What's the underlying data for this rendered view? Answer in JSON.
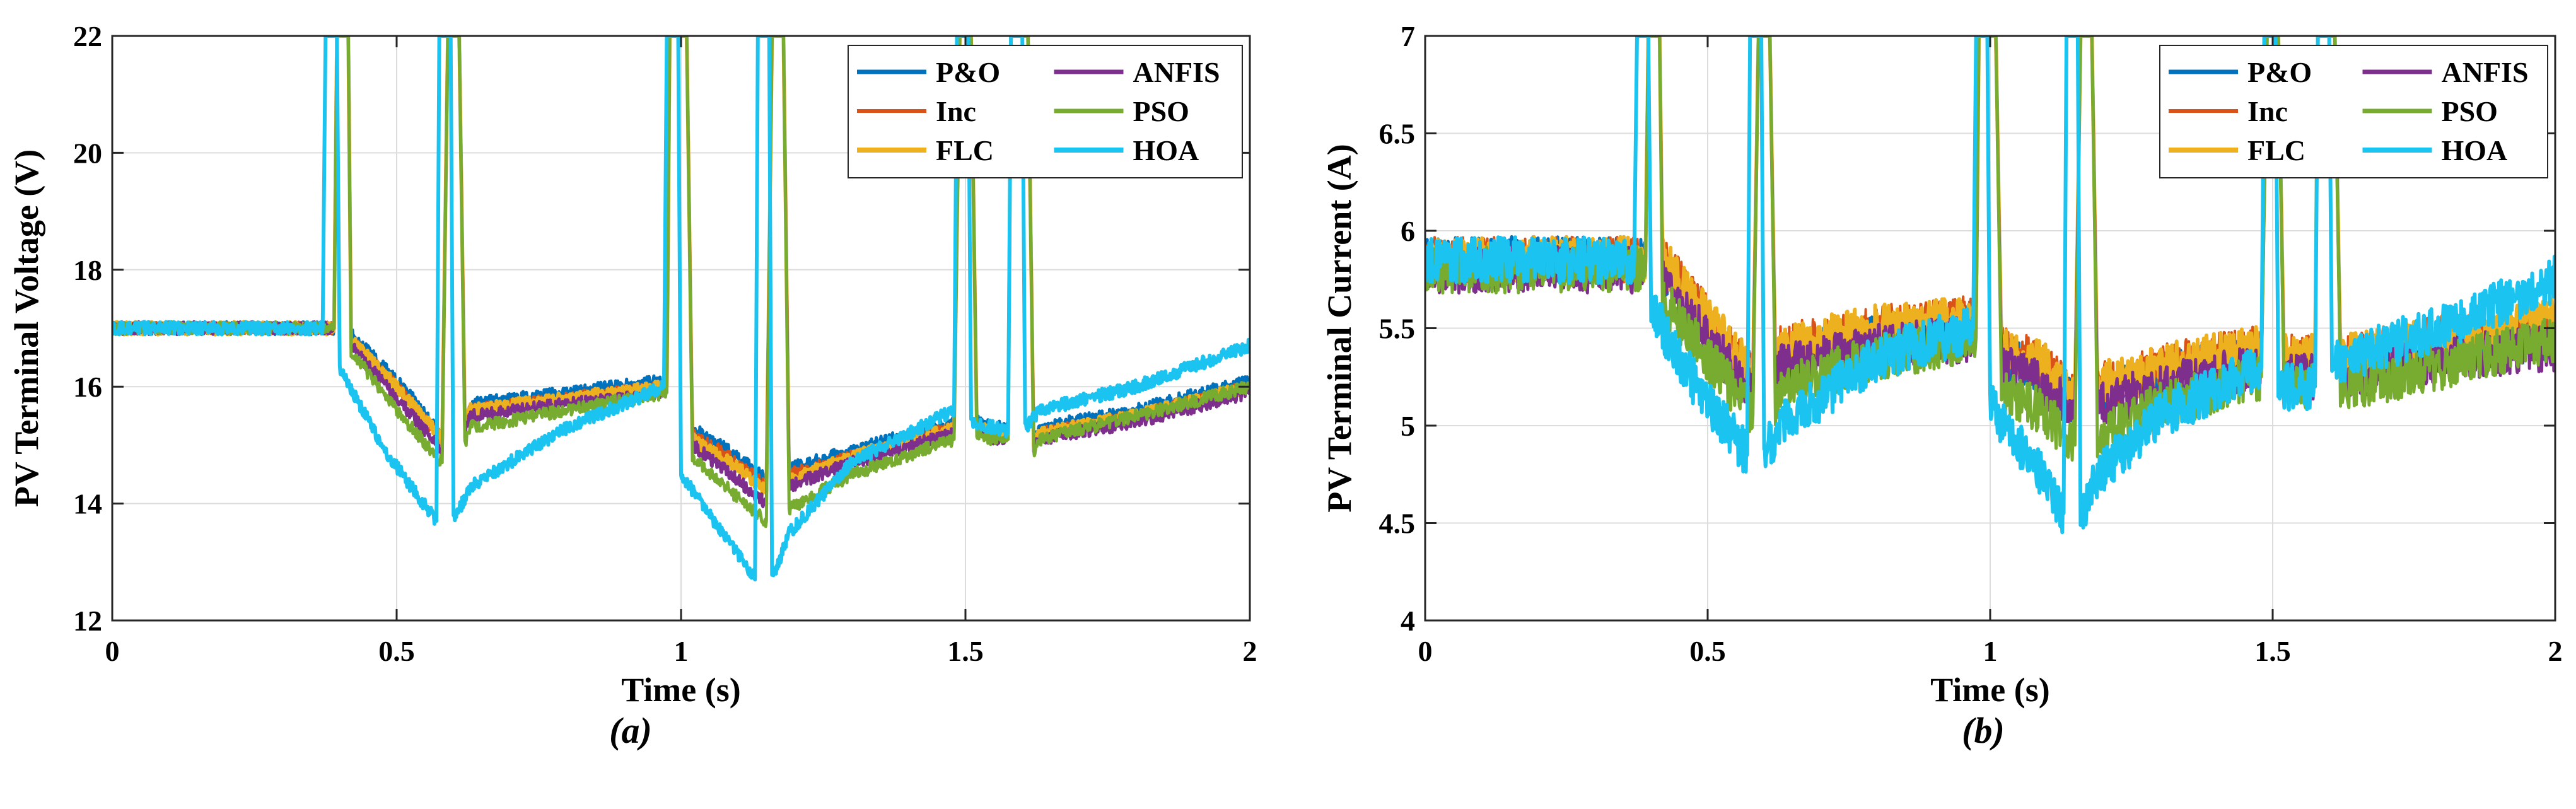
{
  "figure": {
    "colors": {
      "P&O": "#0072BD",
      "Inc": "#D95319",
      "FLC": "#EDB120",
      "ANFIS": "#7E2F8E",
      "PSO": "#77AC30",
      "HOA": "#1BC3F0"
    }
  },
  "chart_data": [
    {
      "type": "line",
      "caption": "(a)",
      "title": "",
      "xlabel": "Time (s)",
      "ylabel": "PV Terminal Voltage (V)",
      "xlim": [
        0,
        2
      ],
      "ylim": [
        12,
        22
      ],
      "xticks": [
        0,
        0.5,
        1,
        1.5,
        2
      ],
      "xtick_labels": [
        "0",
        "0.5",
        "1",
        "1.5",
        "2"
      ],
      "yticks": [
        12,
        14,
        16,
        18,
        20,
        22
      ],
      "ytick_labels": [
        "12",
        "14",
        "16",
        "18",
        "20",
        "22"
      ],
      "grid": true,
      "legend": {
        "placement": "top-right",
        "entries": [
          "P&O",
          "Inc",
          "FLC",
          "ANFIS",
          "PSO",
          "HOA"
        ]
      },
      "noise_amplitude": 0.22,
      "series": [
        {
          "name": "P&O",
          "x": [
            0,
            0.39,
            0.395,
            0.405,
            0.415,
            0.42,
            0.5,
            0.58,
            0.59,
            0.6,
            0.61,
            0.62,
            0.63,
            0.8,
            0.975,
            0.98,
            1.0,
            1.01,
            1.02,
            1.1,
            1.15,
            1.16,
            1.17,
            1.18,
            1.19,
            1.3,
            1.48,
            1.49,
            1.5,
            1.51,
            1.52,
            1.55,
            1.575,
            1.58,
            1.6,
            1.61,
            1.62,
            1.63,
            1.8,
            2.0
          ],
          "y": [
            17.0,
            17.0,
            22,
            22,
            22,
            16.9,
            16.1,
            15.2,
            22,
            22,
            22,
            15.4,
            15.7,
            15.9,
            16.1,
            22,
            22,
            22,
            15.3,
            14.8,
            14.4,
            22,
            22,
            22,
            14.6,
            14.9,
            15.4,
            22,
            22,
            22,
            15.4,
            15.3,
            15.3,
            22,
            22,
            22,
            15.1,
            15.3,
            15.6,
            16.1
          ]
        },
        {
          "name": "Inc",
          "x": [
            0,
            0.39,
            0.395,
            0.405,
            0.415,
            0.42,
            0.5,
            0.58,
            0.59,
            0.6,
            0.61,
            0.62,
            0.63,
            0.8,
            0.975,
            0.98,
            1.0,
            1.01,
            1.02,
            1.1,
            1.15,
            1.16,
            1.17,
            1.18,
            1.19,
            1.3,
            1.48,
            1.49,
            1.5,
            1.51,
            1.52,
            1.55,
            1.575,
            1.58,
            1.6,
            1.61,
            1.62,
            1.63,
            1.8,
            2.0
          ],
          "y": [
            17.0,
            17.0,
            22,
            22,
            22,
            16.8,
            16.0,
            15.1,
            22,
            22,
            22,
            15.3,
            15.6,
            15.8,
            16.0,
            22,
            22,
            22,
            15.2,
            14.7,
            14.3,
            22,
            22,
            22,
            14.5,
            14.8,
            15.3,
            22,
            22,
            22,
            15.3,
            15.2,
            15.2,
            22,
            22,
            22,
            15.0,
            15.2,
            15.5,
            16.0
          ]
        },
        {
          "name": "FLC",
          "x": [
            0,
            0.39,
            0.395,
            0.405,
            0.415,
            0.42,
            0.5,
            0.58,
            0.59,
            0.6,
            0.61,
            0.62,
            0.63,
            0.8,
            0.975,
            0.98,
            1.0,
            1.01,
            1.02,
            1.1,
            1.15,
            1.16,
            1.17,
            1.18,
            1.19,
            1.3,
            1.48,
            1.49,
            1.5,
            1.51,
            1.52,
            1.55,
            1.575,
            1.58,
            1.6,
            1.61,
            1.62,
            1.63,
            1.8,
            2.0
          ],
          "y": [
            17.0,
            17.0,
            22,
            22,
            22,
            16.8,
            16.0,
            15.1,
            22,
            22,
            22,
            15.4,
            15.6,
            15.8,
            16.0,
            22,
            22,
            22,
            15.1,
            14.6,
            14.2,
            22,
            22,
            22,
            14.4,
            14.8,
            15.3,
            22,
            22,
            22,
            15.3,
            15.2,
            15.2,
            22,
            22,
            22,
            15.0,
            15.2,
            15.5,
            16.0
          ]
        },
        {
          "name": "ANFIS",
          "x": [
            0,
            0.39,
            0.395,
            0.405,
            0.415,
            0.42,
            0.5,
            0.58,
            0.59,
            0.6,
            0.61,
            0.62,
            0.63,
            0.8,
            0.975,
            0.98,
            1.0,
            1.01,
            1.02,
            1.1,
            1.15,
            1.16,
            1.17,
            1.18,
            1.19,
            1.3,
            1.48,
            1.49,
            1.5,
            1.51,
            1.52,
            1.55,
            1.575,
            1.58,
            1.6,
            1.61,
            1.62,
            1.63,
            1.8,
            2.0
          ],
          "y": [
            17.0,
            17.0,
            22,
            22,
            22,
            16.7,
            15.8,
            14.9,
            22,
            22,
            22,
            15.2,
            15.5,
            15.7,
            15.9,
            22,
            22,
            22,
            15.0,
            14.4,
            14.0,
            22,
            22,
            22,
            14.3,
            14.7,
            15.2,
            22,
            22,
            22,
            15.3,
            15.1,
            15.1,
            22,
            22,
            22,
            15.0,
            15.1,
            15.4,
            15.9
          ]
        },
        {
          "name": "PSO",
          "x": [
            0,
            0.39,
            0.395,
            0.405,
            0.415,
            0.42,
            0.5,
            0.58,
            0.59,
            0.6,
            0.61,
            0.62,
            0.63,
            0.8,
            0.975,
            0.98,
            1.0,
            1.01,
            1.02,
            1.1,
            1.15,
            1.16,
            1.17,
            1.18,
            1.19,
            1.3,
            1.48,
            1.49,
            1.5,
            1.51,
            1.52,
            1.55,
            1.575,
            1.58,
            1.6,
            1.61,
            1.62,
            1.63,
            1.8,
            2.0
          ],
          "y": [
            17.0,
            17.0,
            22,
            22,
            22,
            16.6,
            15.6,
            14.7,
            22,
            22,
            22,
            15.0,
            15.3,
            15.6,
            15.9,
            22,
            22,
            22,
            14.8,
            14.1,
            13.7,
            22,
            22,
            22,
            13.9,
            14.5,
            15.1,
            22,
            22,
            22,
            15.2,
            15.1,
            15.1,
            22,
            22,
            22,
            14.9,
            15.1,
            15.5,
            16.0
          ]
        },
        {
          "name": "HOA",
          "x": [
            0,
            0.37,
            0.375,
            0.385,
            0.395,
            0.4,
            0.48,
            0.57,
            0.575,
            0.585,
            0.595,
            0.6,
            0.63,
            0.8,
            0.97,
            0.975,
            0.985,
            0.995,
            1.0,
            1.08,
            1.13,
            1.135,
            1.145,
            1.155,
            1.16,
            1.19,
            1.3,
            1.48,
            1.485,
            1.495,
            1.505,
            1.51,
            1.55,
            1.575,
            1.58,
            1.59,
            1.6,
            1.605,
            1.63,
            1.8,
            2.0
          ],
          "y": [
            17.0,
            17.0,
            22,
            22,
            22,
            16.3,
            14.9,
            13.7,
            22,
            22,
            22,
            13.7,
            14.3,
            15.3,
            16.0,
            22,
            22,
            22,
            14.5,
            13.4,
            12.7,
            22,
            22,
            22,
            12.7,
            13.5,
            14.7,
            15.6,
            22,
            22,
            22,
            15.4,
            15.3,
            15.2,
            22,
            22,
            22,
            15.3,
            15.6,
            16.0,
            16.7
          ]
        }
      ]
    },
    {
      "type": "line",
      "caption": "(b)",
      "title": "",
      "xlabel": "Time (s)",
      "ylabel": "PV Terminal Current (A)",
      "xlim": [
        0,
        2
      ],
      "ylim": [
        4,
        7
      ],
      "xticks": [
        0,
        0.5,
        1,
        1.5,
        2
      ],
      "xtick_labels": [
        "0",
        "0.5",
        "1",
        "1.5",
        "2"
      ],
      "yticks": [
        4,
        4.5,
        5,
        5.5,
        6,
        6.5,
        7
      ],
      "ytick_labels": [
        "4",
        "4.5",
        "5",
        "5.5",
        "6",
        "6.5",
        "7"
      ],
      "grid": true,
      "legend": {
        "placement": "top-right",
        "entries": [
          "P&O",
          "Inc",
          "FLC",
          "ANFIS",
          "PSO",
          "HOA"
        ]
      },
      "noise_amplitude": 0.24,
      "series": [
        {
          "name": "P&O",
          "x": [
            0,
            0.39,
            0.395,
            0.405,
            0.415,
            0.42,
            0.5,
            0.58,
            0.59,
            0.6,
            0.61,
            0.62,
            0.63,
            0.8,
            0.975,
            0.98,
            1.0,
            1.01,
            1.02,
            1.1,
            1.15,
            1.16,
            1.17,
            1.18,
            1.19,
            1.3,
            1.48,
            1.49,
            1.5,
            1.51,
            1.52,
            1.55,
            1.575,
            1.58,
            1.6,
            1.61,
            1.62,
            1.63,
            1.8,
            2.0
          ],
          "y": [
            5.85,
            5.85,
            7,
            7,
            7,
            5.8,
            5.5,
            5.2,
            7,
            7,
            7,
            5.25,
            5.35,
            5.45,
            5.5,
            7,
            7,
            7,
            5.35,
            5.25,
            5.1,
            7,
            7,
            7,
            5.15,
            5.25,
            5.35,
            7,
            7,
            7,
            5.3,
            5.3,
            5.3,
            7,
            7,
            7,
            5.3,
            5.3,
            5.4,
            5.45
          ]
        },
        {
          "name": "Inc",
          "x": [
            0,
            0.39,
            0.395,
            0.405,
            0.415,
            0.42,
            0.5,
            0.58,
            0.59,
            0.6,
            0.61,
            0.62,
            0.63,
            0.8,
            0.975,
            0.98,
            1.0,
            1.01,
            1.02,
            1.1,
            1.15,
            1.16,
            1.17,
            1.18,
            1.19,
            1.3,
            1.48,
            1.49,
            1.5,
            1.51,
            1.52,
            1.55,
            1.575,
            1.58,
            1.6,
            1.61,
            1.62,
            1.63,
            1.8,
            2.0
          ],
          "y": [
            5.85,
            5.85,
            7,
            7,
            7,
            5.85,
            5.55,
            5.25,
            7,
            7,
            7,
            5.3,
            5.4,
            5.5,
            5.55,
            7,
            7,
            7,
            5.4,
            5.3,
            5.15,
            7,
            7,
            7,
            5.2,
            5.3,
            5.4,
            7,
            7,
            7,
            5.35,
            5.35,
            5.35,
            7,
            7,
            7,
            5.35,
            5.35,
            5.45,
            5.5
          ]
        },
        {
          "name": "FLC",
          "x": [
            0,
            0.39,
            0.395,
            0.405,
            0.415,
            0.42,
            0.5,
            0.58,
            0.59,
            0.6,
            0.61,
            0.62,
            0.63,
            0.8,
            0.975,
            0.98,
            1.0,
            1.01,
            1.02,
            1.1,
            1.15,
            1.16,
            1.17,
            1.18,
            1.19,
            1.3,
            1.48,
            1.49,
            1.5,
            1.51,
            1.52,
            1.55,
            1.575,
            1.58,
            1.6,
            1.61,
            1.62,
            1.63,
            1.8,
            2.0
          ],
          "y": [
            5.85,
            5.85,
            7,
            7,
            7,
            5.85,
            5.55,
            5.25,
            7,
            7,
            7,
            5.3,
            5.4,
            5.5,
            5.55,
            7,
            7,
            7,
            5.4,
            5.3,
            5.15,
            7,
            7,
            7,
            5.2,
            5.3,
            5.4,
            7,
            7,
            7,
            5.35,
            5.35,
            5.35,
            7,
            7,
            7,
            5.35,
            5.35,
            5.45,
            5.55
          ]
        },
        {
          "name": "ANFIS",
          "x": [
            0,
            0.39,
            0.395,
            0.405,
            0.415,
            0.42,
            0.5,
            0.58,
            0.59,
            0.6,
            0.61,
            0.62,
            0.63,
            0.8,
            0.975,
            0.98,
            1.0,
            1.01,
            1.02,
            1.1,
            1.15,
            1.16,
            1.17,
            1.18,
            1.19,
            1.3,
            1.48,
            1.49,
            1.5,
            1.51,
            1.52,
            1.55,
            1.575,
            1.58,
            1.6,
            1.61,
            1.62,
            1.63,
            1.8,
            2.0
          ],
          "y": [
            5.8,
            5.8,
            7,
            7,
            7,
            5.75,
            5.45,
            5.15,
            7,
            7,
            7,
            5.2,
            5.3,
            5.4,
            5.45,
            7,
            7,
            7,
            5.3,
            5.2,
            5.05,
            7,
            7,
            7,
            5.1,
            5.2,
            5.3,
            7,
            7,
            7,
            5.25,
            5.25,
            5.25,
            7,
            7,
            7,
            5.25,
            5.25,
            5.35,
            5.4
          ]
        },
        {
          "name": "PSO",
          "x": [
            0,
            0.39,
            0.395,
            0.405,
            0.415,
            0.42,
            0.5,
            0.58,
            0.59,
            0.6,
            0.61,
            0.62,
            0.63,
            0.8,
            0.975,
            0.98,
            1.0,
            1.01,
            1.02,
            1.1,
            1.15,
            1.16,
            1.17,
            1.18,
            1.19,
            1.3,
            1.48,
            1.49,
            1.5,
            1.51,
            1.52,
            1.55,
            1.575,
            1.58,
            1.6,
            1.61,
            1.62,
            1.63,
            1.8,
            2.0
          ],
          "y": [
            5.8,
            5.8,
            7,
            7,
            7,
            5.65,
            5.35,
            5.05,
            7,
            7,
            7,
            5.1,
            5.2,
            5.35,
            5.45,
            7,
            7,
            7,
            5.2,
            5.05,
            4.9,
            7,
            7,
            7,
            4.95,
            5.1,
            5.25,
            7,
            7,
            7,
            5.2,
            5.2,
            5.2,
            7,
            7,
            7,
            5.2,
            5.2,
            5.3,
            5.45
          ]
        },
        {
          "name": "HOA",
          "x": [
            0,
            0.37,
            0.375,
            0.385,
            0.395,
            0.4,
            0.48,
            0.57,
            0.575,
            0.585,
            0.595,
            0.6,
            0.63,
            0.8,
            0.97,
            0.975,
            0.985,
            0.995,
            1.0,
            1.08,
            1.13,
            1.135,
            1.145,
            1.155,
            1.16,
            1.19,
            1.3,
            1.48,
            1.485,
            1.495,
            1.505,
            1.51,
            1.55,
            1.575,
            1.58,
            1.59,
            1.6,
            1.605,
            1.63,
            1.8,
            2.0
          ],
          "y": [
            5.85,
            5.85,
            7,
            7,
            7,
            5.6,
            5.2,
            4.85,
            7,
            7,
            7,
            4.85,
            5.0,
            5.35,
            5.5,
            7,
            7,
            7,
            5.1,
            4.8,
            4.55,
            7,
            7,
            7,
            4.5,
            4.75,
            5.05,
            5.3,
            7,
            7,
            7,
            5.2,
            5.2,
            5.2,
            7,
            7,
            7,
            5.3,
            5.35,
            5.5,
            5.75
          ]
        }
      ]
    }
  ]
}
